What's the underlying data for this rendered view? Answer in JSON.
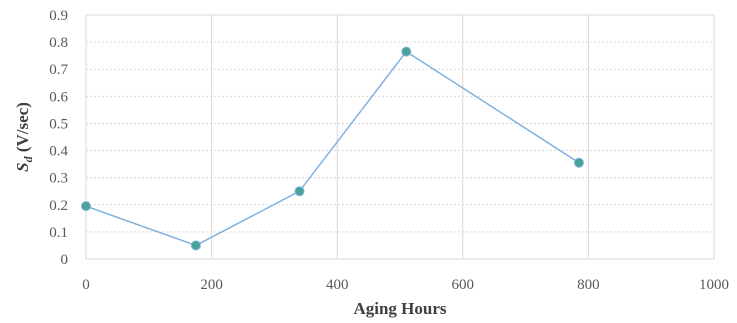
{
  "chart_data": {
    "type": "line",
    "title": "",
    "xlabel": "Aging Hours",
    "ylabel_main": "S",
    "ylabel_sub": "d",
    "ylabel_rest": " (V/sec)",
    "xlim": [
      0,
      1000
    ],
    "ylim": [
      0,
      0.9
    ],
    "x_ticks": [
      0,
      200,
      400,
      600,
      800,
      1000
    ],
    "x_tick_labels": [
      "0",
      "200",
      "400",
      "600",
      "800",
      "1000"
    ],
    "y_ticks": [
      0,
      0.1,
      0.2,
      0.3,
      0.4,
      0.5,
      0.6,
      0.7,
      0.8,
      0.9
    ],
    "y_tick_labels": [
      "0",
      "0.1",
      "0.2",
      "0.3",
      "0.4",
      "0.5",
      "0.6",
      "0.7",
      "0.8",
      "0.9"
    ],
    "grid": true,
    "legend": "none",
    "series": [
      {
        "x": [
          0,
          175,
          340,
          510,
          785
        ],
        "y": [
          0.195,
          0.05,
          0.25,
          0.765,
          0.355
        ],
        "line_color": "#7fb2df",
        "marker_fill": "#4aa39a",
        "marker_stroke": "#7fb2df"
      }
    ]
  }
}
